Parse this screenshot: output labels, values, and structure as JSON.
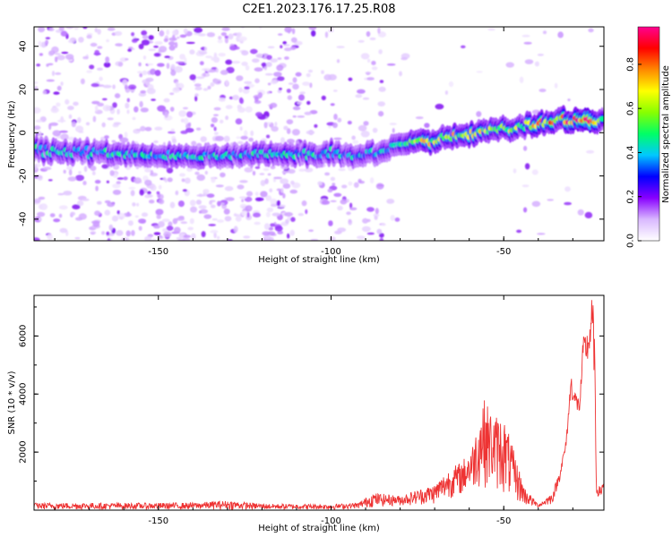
{
  "title": "C2E1.2023.176.17.25.R08",
  "chart_data": [
    {
      "type": "heatmap",
      "xlabel": "Height of straight line (km)",
      "ylabel": "Frequency (Hz)",
      "xlim": [
        -186,
        -21
      ],
      "ylim": [
        -50,
        49
      ],
      "x_ticks": [
        -150,
        -100,
        -50
      ],
      "y_ticks": [
        -40,
        -20,
        0,
        20,
        40
      ],
      "colorbar": {
        "label": "Normalized spectral amplitude",
        "range": [
          0.0,
          0.97
        ],
        "ticks": [
          0.0,
          0.2,
          0.4,
          0.6,
          0.8
        ],
        "colors": [
          "#ffffff",
          "#d9b8ff",
          "#8800ff",
          "#0000ff",
          "#00c8ff",
          "#00ff66",
          "#88ff00",
          "#ffff00",
          "#ff8800",
          "#ff0000",
          "#ff0090"
        ]
      },
      "ridge": [
        {
          "x": -186,
          "freq": -8
        },
        {
          "x": -160,
          "freq": -10
        },
        {
          "x": -140,
          "freq": -11
        },
        {
          "x": -120,
          "freq": -10
        },
        {
          "x": -100,
          "freq": -10
        },
        {
          "x": -90,
          "freq": -10
        },
        {
          "x": -85,
          "freq": -9
        },
        {
          "x": -80,
          "freq": -6
        },
        {
          "x": -70,
          "freq": -3
        },
        {
          "x": -60,
          "freq": 0
        },
        {
          "x": -50,
          "freq": 2
        },
        {
          "x": -40,
          "freq": 4
        },
        {
          "x": -30,
          "freq": 6
        },
        {
          "x": -21,
          "freq": 5
        }
      ],
      "peak_amplitude": [
        {
          "x": -186,
          "a": 0.55
        },
        {
          "x": -100,
          "a": 0.55
        },
        {
          "x": -85,
          "a": 0.5
        },
        {
          "x": -75,
          "a": 0.75
        },
        {
          "x": -60,
          "a": 0.75
        },
        {
          "x": -45,
          "a": 0.7
        },
        {
          "x": -35,
          "a": 0.85
        },
        {
          "x": -25,
          "a": 0.97
        },
        {
          "x": -21,
          "a": 0.6
        }
      ]
    },
    {
      "type": "line",
      "xlabel": "Height of straight line (km)",
      "ylabel": "SNR (10 * v/v)",
      "xlim": [
        -186,
        -21
      ],
      "ylim": [
        0,
        7400
      ],
      "x_ticks": [
        -150,
        -100,
        -50
      ],
      "y_ticks": [
        2000,
        4000,
        6000
      ],
      "series_color": "#ee3333",
      "envelope": [
        {
          "x": -186,
          "low": 20,
          "high": 250
        },
        {
          "x": -150,
          "low": 20,
          "high": 250
        },
        {
          "x": -140,
          "low": 20,
          "high": 260
        },
        {
          "x": -130,
          "low": 20,
          "high": 330
        },
        {
          "x": -120,
          "low": 20,
          "high": 220
        },
        {
          "x": -100,
          "low": 20,
          "high": 200
        },
        {
          "x": -92,
          "low": 50,
          "high": 260
        },
        {
          "x": -88,
          "low": 100,
          "high": 600
        },
        {
          "x": -80,
          "low": 150,
          "high": 500
        },
        {
          "x": -70,
          "low": 200,
          "high": 900
        },
        {
          "x": -66,
          "low": 400,
          "high": 1400
        },
        {
          "x": -62,
          "low": 500,
          "high": 1700
        },
        {
          "x": -59,
          "low": 700,
          "high": 2300
        },
        {
          "x": -56,
          "low": 800,
          "high": 3900
        },
        {
          "x": -53,
          "low": 700,
          "high": 3300
        },
        {
          "x": -50,
          "low": 500,
          "high": 3250
        },
        {
          "x": -47,
          "low": 300,
          "high": 2000
        },
        {
          "x": -44,
          "low": 150,
          "high": 800
        },
        {
          "x": -40,
          "low": 100,
          "high": 200
        },
        {
          "x": -36,
          "low": 200,
          "high": 600
        },
        {
          "x": -34,
          "low": 900,
          "high": 1300
        },
        {
          "x": -32,
          "low": 2000,
          "high": 2400
        },
        {
          "x": -30.5,
          "low": 4000,
          "high": 4700
        },
        {
          "x": -29.5,
          "low": 3300,
          "high": 4200
        },
        {
          "x": -28,
          "low": 3300,
          "high": 3800
        },
        {
          "x": -27,
          "low": 4800,
          "high": 6000
        },
        {
          "x": -25.5,
          "low": 5000,
          "high": 6200
        },
        {
          "x": -24.5,
          "low": 5500,
          "high": 7400
        },
        {
          "x": -23.8,
          "low": 4500,
          "high": 6800
        },
        {
          "x": -23.2,
          "low": 500,
          "high": 900
        },
        {
          "x": -22,
          "low": 400,
          "high": 800
        },
        {
          "x": -21,
          "low": 700,
          "high": 1100
        }
      ]
    }
  ]
}
